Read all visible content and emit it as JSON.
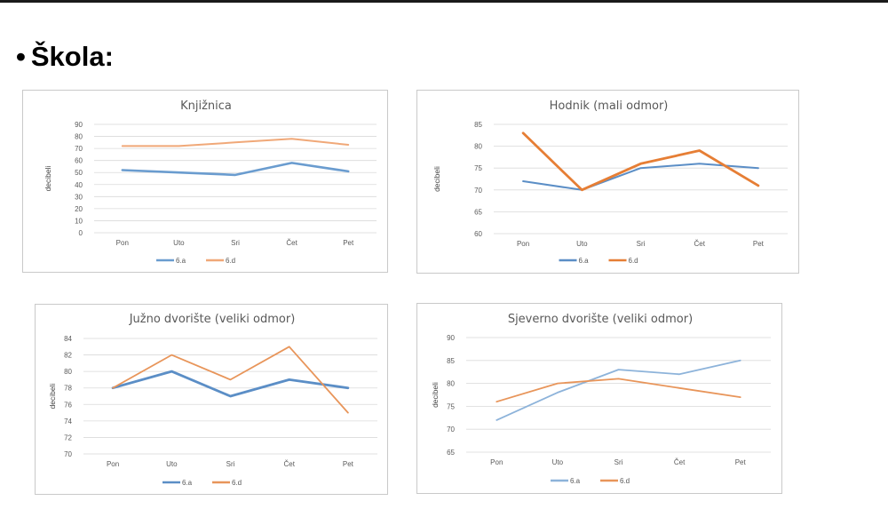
{
  "slide": {
    "bullet": "•",
    "title": "Škola:"
  },
  "colors": {
    "grid": "#d9d9d9",
    "text": "#595959"
  },
  "chart_data": [
    {
      "type": "line",
      "title": "Knjižnica",
      "ylabel": "decibeli",
      "categories": [
        "Pon",
        "Uto",
        "Sri",
        "Čet",
        "Pet"
      ],
      "ylim": [
        0,
        90
      ],
      "yticks": [
        0,
        10,
        20,
        30,
        40,
        50,
        60,
        70,
        80,
        90
      ],
      "grid": true,
      "legend_position": "bottom",
      "series": [
        {
          "name": "6.a",
          "color": "#6a9ccf",
          "values": [
            52,
            50,
            48,
            58,
            51
          ]
        },
        {
          "name": "6.d",
          "color": "#f0a878",
          "values": [
            72,
            72,
            75,
            78,
            73
          ]
        }
      ]
    },
    {
      "type": "line",
      "title": "Hodnik (mali odmor)",
      "ylabel": "decibeli",
      "categories": [
        "Pon",
        "Uto",
        "Sri",
        "Čet",
        "Pet"
      ],
      "ylim": [
        60,
        85
      ],
      "yticks": [
        60,
        65,
        70,
        75,
        80,
        85
      ],
      "grid": true,
      "legend_position": "bottom",
      "series": [
        {
          "name": "6.a",
          "color": "#5b8ec6",
          "values": [
            72,
            70,
            75,
            76,
            75
          ]
        },
        {
          "name": "6.d",
          "color": "#e67e35",
          "values": [
            83,
            70,
            76,
            79,
            71
          ]
        }
      ]
    },
    {
      "type": "line",
      "title": "Južno dvorište (veliki odmor)",
      "ylabel": "decibeli",
      "categories": [
        "Pon",
        "Uto",
        "Sri",
        "Čet",
        "Pet"
      ],
      "ylim": [
        70,
        84
      ],
      "yticks": [
        70,
        72,
        74,
        76,
        78,
        80,
        82,
        84
      ],
      "grid": true,
      "legend_position": "bottom",
      "series": [
        {
          "name": "6.a",
          "color": "#5b8ec6",
          "values": [
            78,
            80,
            77,
            79,
            78
          ]
        },
        {
          "name": "6.d",
          "color": "#e8955a",
          "values": [
            78,
            82,
            79,
            83,
            75
          ]
        }
      ]
    },
    {
      "type": "line",
      "title": "Sjeverno dvorište (veliki odmor)",
      "ylabel": "decibeli",
      "categories": [
        "Pon",
        "Uto",
        "Sri",
        "Čet",
        "Pet"
      ],
      "ylim": [
        65,
        90
      ],
      "yticks": [
        65,
        70,
        75,
        80,
        85,
        90
      ],
      "grid": true,
      "legend_position": "bottom",
      "series": [
        {
          "name": "6.a",
          "color": "#8db3da",
          "values": [
            72,
            78,
            83,
            82,
            85
          ]
        },
        {
          "name": "6.d",
          "color": "#e8955a",
          "values": [
            76,
            80,
            81,
            79,
            77
          ]
        }
      ]
    }
  ]
}
